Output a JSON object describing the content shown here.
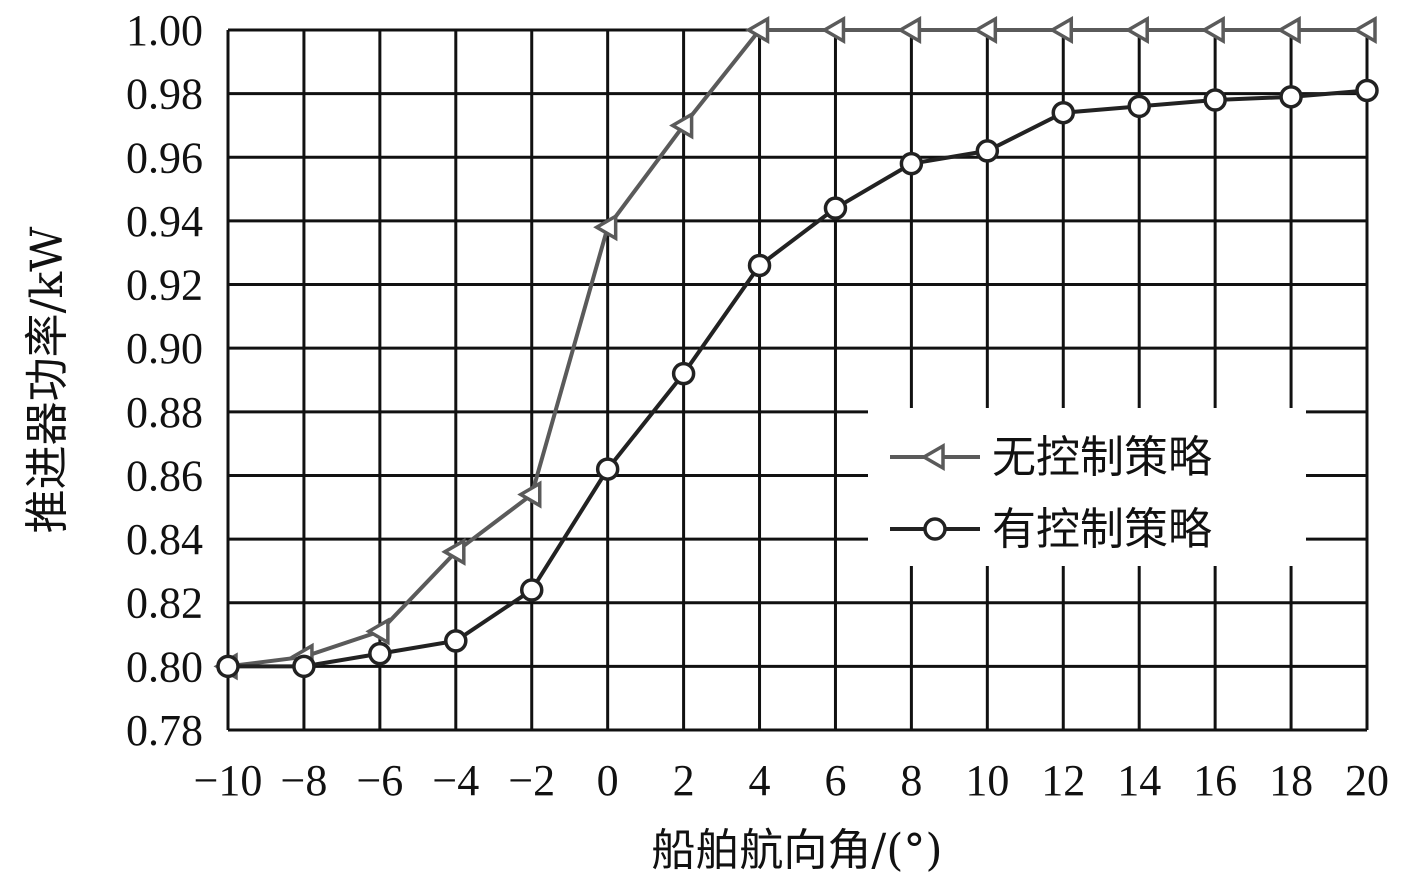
{
  "chart_data": {
    "type": "line",
    "xlabel": "船舶航向角/(°)",
    "ylabel": "推进器功率/kW",
    "xlim": [
      -10,
      20
    ],
    "ylim": [
      0.78,
      1.0
    ],
    "grid": true,
    "legend_position": "center-right",
    "x": [
      -10,
      -8,
      -6,
      -4,
      -2,
      0,
      2,
      4,
      6,
      8,
      10,
      12,
      14,
      16,
      18,
      20
    ],
    "x_tick_labels": [
      "−10",
      "−8",
      "−6",
      "−4",
      "−2",
      "0",
      "2",
      "4",
      "6",
      "8",
      "10",
      "12",
      "14",
      "16",
      "18",
      "20"
    ],
    "y_tick_labels": [
      "0.78",
      "0.80",
      "0.82",
      "0.84",
      "0.86",
      "0.88",
      "0.90",
      "0.92",
      "0.94",
      "0.96",
      "0.98",
      "1.00"
    ],
    "series": [
      {
        "name": "无控制策略",
        "marker": "triangle-left",
        "color": "#5a5a5a",
        "values": [
          0.8,
          0.803,
          0.811,
          0.836,
          0.854,
          0.938,
          0.97,
          1.0,
          1.0,
          1.0,
          1.0,
          1.0,
          1.0,
          1.0,
          1.0,
          1.0
        ]
      },
      {
        "name": "有控制策略",
        "marker": "circle",
        "color": "#222222",
        "values": [
          0.8,
          0.8,
          0.804,
          0.808,
          0.824,
          0.862,
          0.892,
          0.926,
          0.944,
          0.958,
          0.962,
          0.974,
          0.976,
          0.978,
          0.979,
          0.981
        ]
      }
    ]
  }
}
